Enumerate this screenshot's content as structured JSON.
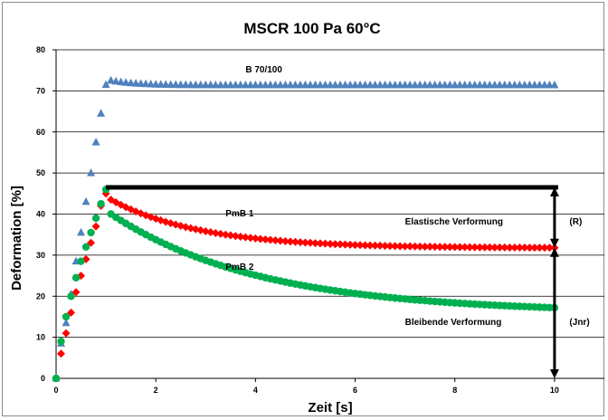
{
  "chart_data": {
    "type": "scatter",
    "title": "MSCR 100 Pa 60°C",
    "xlabel": "Zeit [s]",
    "ylabel": "Deformation [%]",
    "xlim": [
      0,
      11
    ],
    "ylim": [
      0,
      80
    ],
    "x_ticks": [
      0,
      2,
      4,
      6,
      8,
      10
    ],
    "y_ticks": [
      0,
      10,
      20,
      30,
      40,
      50,
      60,
      70,
      80
    ],
    "grid": "horizontal",
    "series": [
      {
        "name": "B 70/100",
        "marker": "triangle",
        "color": "#4f81bd",
        "creep": {
          "x": [
            0,
            0.1,
            0.2,
            0.3,
            0.4,
            0.5,
            0.6,
            0.7,
            0.8,
            0.9,
            1.0
          ],
          "y": [
            0,
            8.5,
            13.5,
            20.5,
            28.5,
            35.5,
            43,
            50,
            57.5,
            64.5,
            71.5
          ]
        },
        "recovery": {
          "t_start": 1.1,
          "t_end": 10.0,
          "step": 0.1,
          "y_start": 72.5,
          "y_end": 71.4,
          "tau": 0.5
        }
      },
      {
        "name": "PmB 1",
        "marker": "diamond",
        "color": "#ff0000",
        "creep": {
          "x": [
            0,
            0.1,
            0.2,
            0.3,
            0.4,
            0.5,
            0.6,
            0.7,
            0.8,
            0.9,
            1.0
          ],
          "y": [
            0,
            6,
            11,
            16,
            21,
            25,
            29,
            33,
            37,
            42,
            45
          ]
        },
        "recovery": {
          "t_start": 1.1,
          "t_end": 10.0,
          "step": 0.1,
          "y_start": 43.5,
          "y_end": 31.8,
          "tau": 1.8
        }
      },
      {
        "name": "PmB 2",
        "marker": "circle",
        "color": "#00b050",
        "creep": {
          "x": [
            0,
            0.1,
            0.2,
            0.3,
            0.4,
            0.5,
            0.6,
            0.7,
            0.8,
            0.9,
            1.0
          ],
          "y": [
            0,
            9,
            15,
            20,
            24.5,
            28.5,
            32,
            35.5,
            39,
            42.5,
            46
          ]
        },
        "recovery": {
          "t_start": 1.1,
          "t_end": 10.0,
          "step": 0.1,
          "y_start": 40,
          "y_end": 17.2,
          "tau": 3.0
        }
      }
    ],
    "annotations": {
      "labels": [
        {
          "text": "B 70/100",
          "x": 3.8,
          "y": 74.5
        },
        {
          "text": "PmB 1",
          "x": 3.4,
          "y": 39.5
        },
        {
          "text": "PmB 2",
          "x": 3.4,
          "y": 26.5
        },
        {
          "text": "Elastische Verformung",
          "x": 7.0,
          "y": 37.5
        },
        {
          "text": "(R)",
          "x": 10.3,
          "y": 37.5
        },
        {
          "text": "Bleibende Verformung",
          "x": 7.0,
          "y": 13.0
        },
        {
          "text": "(Jnr)",
          "x": 10.3,
          "y": 13.0
        }
      ],
      "horizontal_bar": {
        "x1": 1.0,
        "x2": 10.0,
        "y": 46.5
      },
      "arrow_elastic": {
        "x": 10.0,
        "y1": 46.5,
        "y2": 31.8
      },
      "arrow_permanent": {
        "x": 10.0,
        "y1": 31.8,
        "y2": 0
      }
    }
  }
}
